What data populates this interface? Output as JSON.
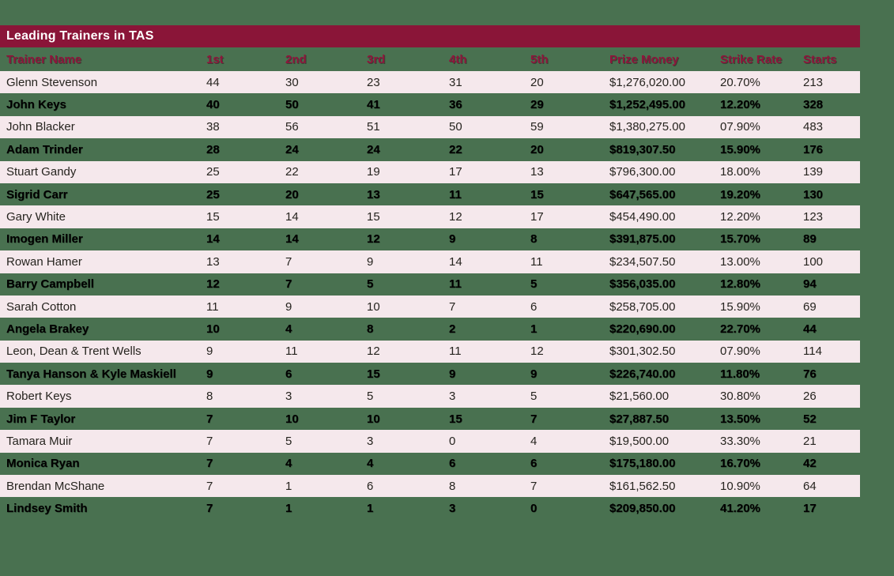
{
  "page": {
    "background_color": "#497150"
  },
  "header": {
    "bar_color": "#8A1538",
    "title_color": "#FFFFFF",
    "header_text_color": "#8E163C",
    "stripe_row_color": "#F5E8EC"
  },
  "chart_data": {
    "type": "table",
    "title": "Leading Trainers in TAS",
    "columns": [
      "Trainer Name",
      "1st",
      "2nd",
      "3rd",
      "4th",
      "5th",
      "Prize Money",
      "Strike Rate",
      "Starts"
    ],
    "rows": [
      [
        "Glenn Stevenson",
        "44",
        "30",
        "23",
        "31",
        "20",
        "$1,276,020.00",
        "20.70%",
        "213"
      ],
      [
        "John Keys",
        "40",
        "50",
        "41",
        "36",
        "29",
        "$1,252,495.00",
        "12.20%",
        "328"
      ],
      [
        "John Blacker",
        "38",
        "56",
        "51",
        "50",
        "59",
        "$1,380,275.00",
        "07.90%",
        "483"
      ],
      [
        "Adam Trinder",
        "28",
        "24",
        "24",
        "22",
        "20",
        "$819,307.50",
        "15.90%",
        "176"
      ],
      [
        "Stuart Gandy",
        "25",
        "22",
        "19",
        "17",
        "13",
        "$796,300.00",
        "18.00%",
        "139"
      ],
      [
        "Sigrid Carr",
        "25",
        "20",
        "13",
        "11",
        "15",
        "$647,565.00",
        "19.20%",
        "130"
      ],
      [
        "Gary White",
        "15",
        "14",
        "15",
        "12",
        "17",
        "$454,490.00",
        "12.20%",
        "123"
      ],
      [
        "Imogen Miller",
        "14",
        "14",
        "12",
        "9",
        "8",
        "$391,875.00",
        "15.70%",
        "89"
      ],
      [
        "Rowan Hamer",
        "13",
        "7",
        "9",
        "14",
        "11",
        "$234,507.50",
        "13.00%",
        "100"
      ],
      [
        "Barry Campbell",
        "12",
        "7",
        "5",
        "11",
        "5",
        "$356,035.00",
        "12.80%",
        "94"
      ],
      [
        "Sarah Cotton",
        "11",
        "9",
        "10",
        "7",
        "6",
        "$258,705.00",
        "15.90%",
        "69"
      ],
      [
        "Angela Brakey",
        "10",
        "4",
        "8",
        "2",
        "1",
        "$220,690.00",
        "22.70%",
        "44"
      ],
      [
        "Leon, Dean & Trent Wells",
        "9",
        "11",
        "12",
        "11",
        "12",
        "$301,302.50",
        "07.90%",
        "114"
      ],
      [
        "Tanya Hanson & Kyle Maskiell",
        "9",
        "6",
        "15",
        "9",
        "9",
        "$226,740.00",
        "11.80%",
        "76"
      ],
      [
        "Robert Keys",
        "8",
        "3",
        "5",
        "3",
        "5",
        "$21,560.00",
        "30.80%",
        "26"
      ],
      [
        "Jim F Taylor",
        "7",
        "10",
        "10",
        "15",
        "7",
        "$27,887.50",
        "13.50%",
        "52"
      ],
      [
        "Tamara Muir",
        "7",
        "5",
        "3",
        "0",
        "4",
        "$19,500.00",
        "33.30%",
        "21"
      ],
      [
        "Monica Ryan",
        "7",
        "4",
        "4",
        "6",
        "6",
        "$175,180.00",
        "16.70%",
        "42"
      ],
      [
        "Brendan McShane",
        "7",
        "1",
        "6",
        "8",
        "7",
        "$161,562.50",
        "10.90%",
        "64"
      ],
      [
        "Lindsey Smith",
        "7",
        "1",
        "1",
        "3",
        "0",
        "$209,850.00",
        "41.20%",
        "17"
      ]
    ]
  }
}
